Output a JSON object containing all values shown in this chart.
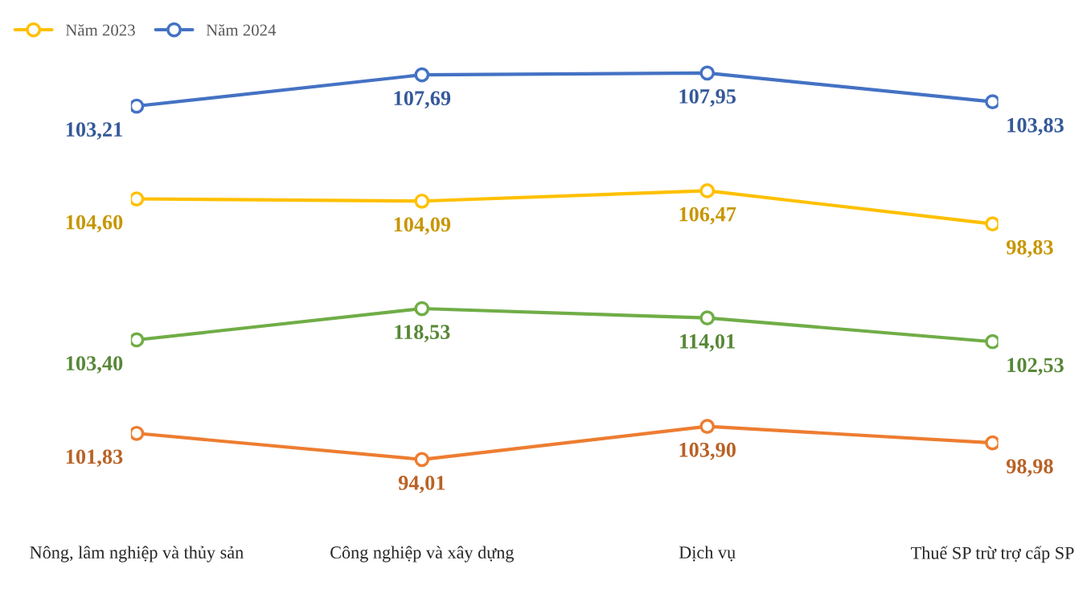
{
  "chart_data": [
    {
      "type": "line",
      "categories": [
        null,
        null,
        null,
        null
      ],
      "series": [
        {
          "name": "Năm 2024",
          "color": "#4472c4",
          "values": [
            103.21,
            107.69,
            107.95,
            103.83
          ],
          "value_labels": [
            "103,21",
            "107,69",
            "107,95",
            "103,83"
          ]
        }
      ],
      "marker": "circle",
      "legend": "top left",
      "tick_labels": false,
      "grid": false
    },
    {
      "type": "line",
      "categories": [
        null,
        null,
        null,
        null
      ],
      "series": [
        {
          "name": "Năm 2023",
          "color": "#ffc000",
          "values": [
            104.6,
            104.09,
            106.47,
            98.83
          ],
          "value_labels": [
            "104,60",
            "104,09",
            "106,47",
            "98,83"
          ]
        }
      ],
      "marker": "circle",
      "legend": "top left",
      "tick_labels": false,
      "grid": false
    },
    {
      "type": "line",
      "categories": [
        null,
        null,
        null,
        null
      ],
      "series": [
        {
          "color": "#70ad47",
          "values": [
            103.4,
            118.53,
            114.01,
            102.53
          ],
          "value_labels": [
            "103,40",
            "118,53",
            "114,01",
            "102,53"
          ]
        }
      ],
      "marker": "circle",
      "tick_labels": false,
      "grid": false
    },
    {
      "type": "line",
      "categories": [
        "Nông, lâm nghiệp và thủy sản",
        "Công nghiệp và xây dựng",
        "Dịch vụ",
        "Thuế SP trừ trợ cấp SP"
      ],
      "series": [
        {
          "color": "#ed7d31",
          "values": [
            101.83,
            94.01,
            103.9,
            98.98
          ],
          "value_labels": [
            "101,83",
            "94,01",
            "103,90",
            "98,98"
          ]
        }
      ],
      "marker": "circle",
      "tick_labels": "x",
      "grid": false
    }
  ]
}
